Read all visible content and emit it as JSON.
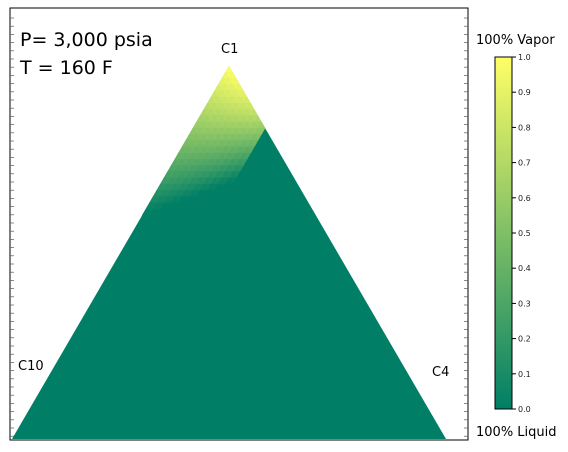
{
  "chart_data": {
    "type": "heatmap",
    "subtype": "ternary",
    "conditions": [
      "P= 3,000 psia",
      "T = 160 F"
    ],
    "vertices": {
      "top": "C1",
      "left": "C10",
      "right": "C4"
    },
    "colorbar": {
      "top_label": "100% Vapor",
      "bottom_label": "100% Liquid",
      "range": [
        0.0,
        1.0
      ],
      "ticks": [
        "0.0",
        "0.1",
        "0.2",
        "0.3",
        "0.4",
        "0.5",
        "0.6",
        "0.7",
        "0.8",
        "0.9",
        "1.0"
      ],
      "colormap": "summer",
      "color_low": "#007f66",
      "color_high": "#ffff66"
    },
    "field": {
      "description_units": "vapor fraction over ternary composition (fraction of C1 / C10 / C4)",
      "liquid_region_value": 0.0,
      "vapor_region_value": 1.0,
      "two_phase_c1_range": [
        0.6,
        1.0
      ]
    }
  }
}
